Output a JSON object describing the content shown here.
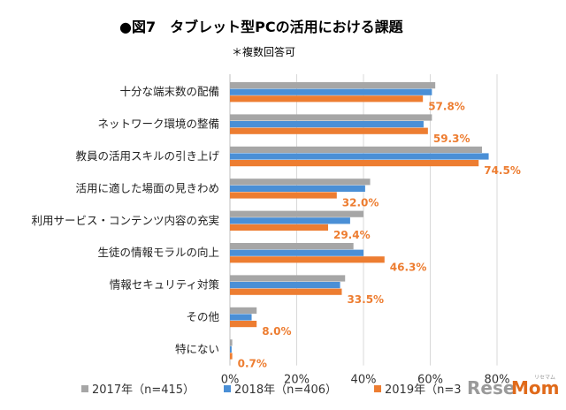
{
  "chart_data": {
    "type": "bar",
    "orientation": "horizontal",
    "title": "●図7　タブレット型PCの活用における課題",
    "subtitle": "＊複数回答可",
    "categories": [
      "十分な端末数の配備",
      "ネットワーク環境の整備",
      "教員の活用スキルの引き上げ",
      "活用に適した場面の見きわめ",
      "利用サービス・コンテンツ内容の充実",
      "生徒の情報モラルの向上",
      "情報セキュリティ対策",
      "その他",
      "特にない"
    ],
    "series": [
      {
        "name": "2017年（n=415）",
        "color": "#a6a6a6",
        "values": [
          61.5,
          60.5,
          75.5,
          42.0,
          40.0,
          37.0,
          34.5,
          8.0,
          0.7
        ]
      },
      {
        "name": "2018年（n=406）",
        "color": "#4a8fd6",
        "values": [
          60.5,
          58.0,
          77.5,
          40.5,
          36.0,
          40.0,
          33.0,
          6.5,
          0.5
        ]
      },
      {
        "name": "2019年（n=3",
        "color": "#ed7d31",
        "values": [
          57.8,
          59.3,
          74.5,
          32.0,
          29.4,
          46.3,
          33.5,
          8.0,
          0.7
        ]
      }
    ],
    "data_labels": [
      "57.8%",
      "59.3%",
      "74.5%",
      "32.0%",
      "29.4%",
      "46.3%",
      "33.5%",
      "8.0%",
      "0.7%"
    ],
    "xlim": [
      0,
      80
    ],
    "xticks": [
      "0%",
      "20%",
      "40%",
      "60%",
      "80%"
    ],
    "grid": true,
    "legend_position": "bottom"
  },
  "watermark": {
    "brand_main": "Rese",
    "brand_accent": "Mom",
    "brand_small": "リセマム"
  }
}
